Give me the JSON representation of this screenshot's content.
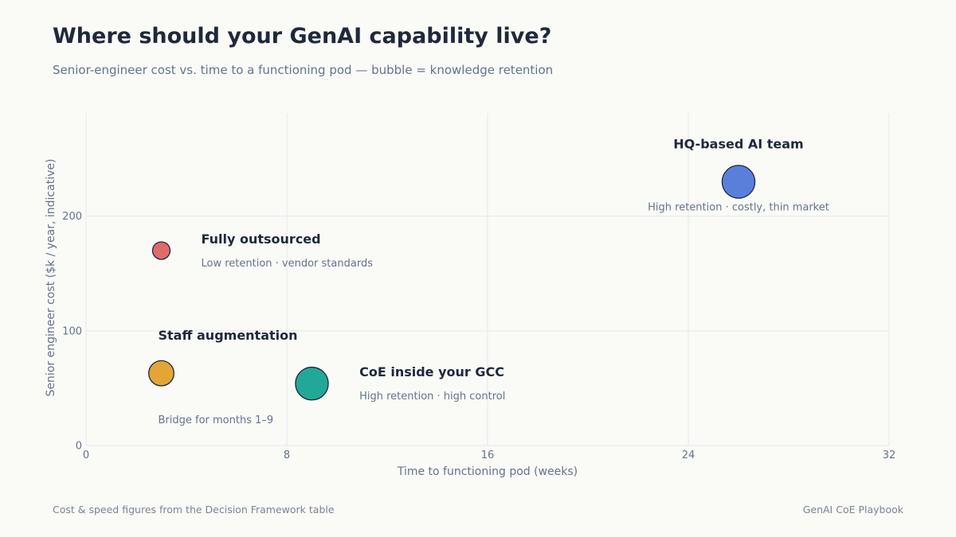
{
  "header": {
    "title": "Where should your GenAI capability live?",
    "subtitle": "Senior-engineer cost vs. time to a functioning pod — bubble = knowledge retention"
  },
  "footer": {
    "source": "Cost & speed figures from the Decision Framework table",
    "brand": "GenAI CoE Playbook"
  },
  "chart_data": {
    "type": "scatter",
    "xlabel": "Time to functioning pod (weeks)",
    "ylabel": "Senior engineer cost ($k / year, indicative)",
    "xlim": [
      0,
      32
    ],
    "ylim": [
      0,
      290
    ],
    "xticks": [
      0,
      8,
      16,
      24,
      32
    ],
    "yticks": [
      0,
      100,
      200
    ],
    "grid": true,
    "points": [
      {
        "name": "Fully outsourced",
        "note": "Low retention · vendor standards",
        "x": 3,
        "y": 170,
        "bubble": 1,
        "color": "#e06b6b",
        "label_pos": "right"
      },
      {
        "name": "Staff augmentation",
        "note": "Bridge for months 1–9",
        "x": 3,
        "y": 63,
        "bubble": 2,
        "color": "#e3a535",
        "label_pos": "stacked"
      },
      {
        "name": "CoE inside your GCC",
        "note": "High retention · high control",
        "x": 9,
        "y": 54,
        "bubble": 3,
        "color": "#22a898",
        "label_pos": "right"
      },
      {
        "name": "HQ-based AI team",
        "note": "High retention · costly, thin market",
        "x": 26,
        "y": 230,
        "bubble": 3,
        "color": "#5a7fdb",
        "label_pos": "above"
      }
    ]
  }
}
